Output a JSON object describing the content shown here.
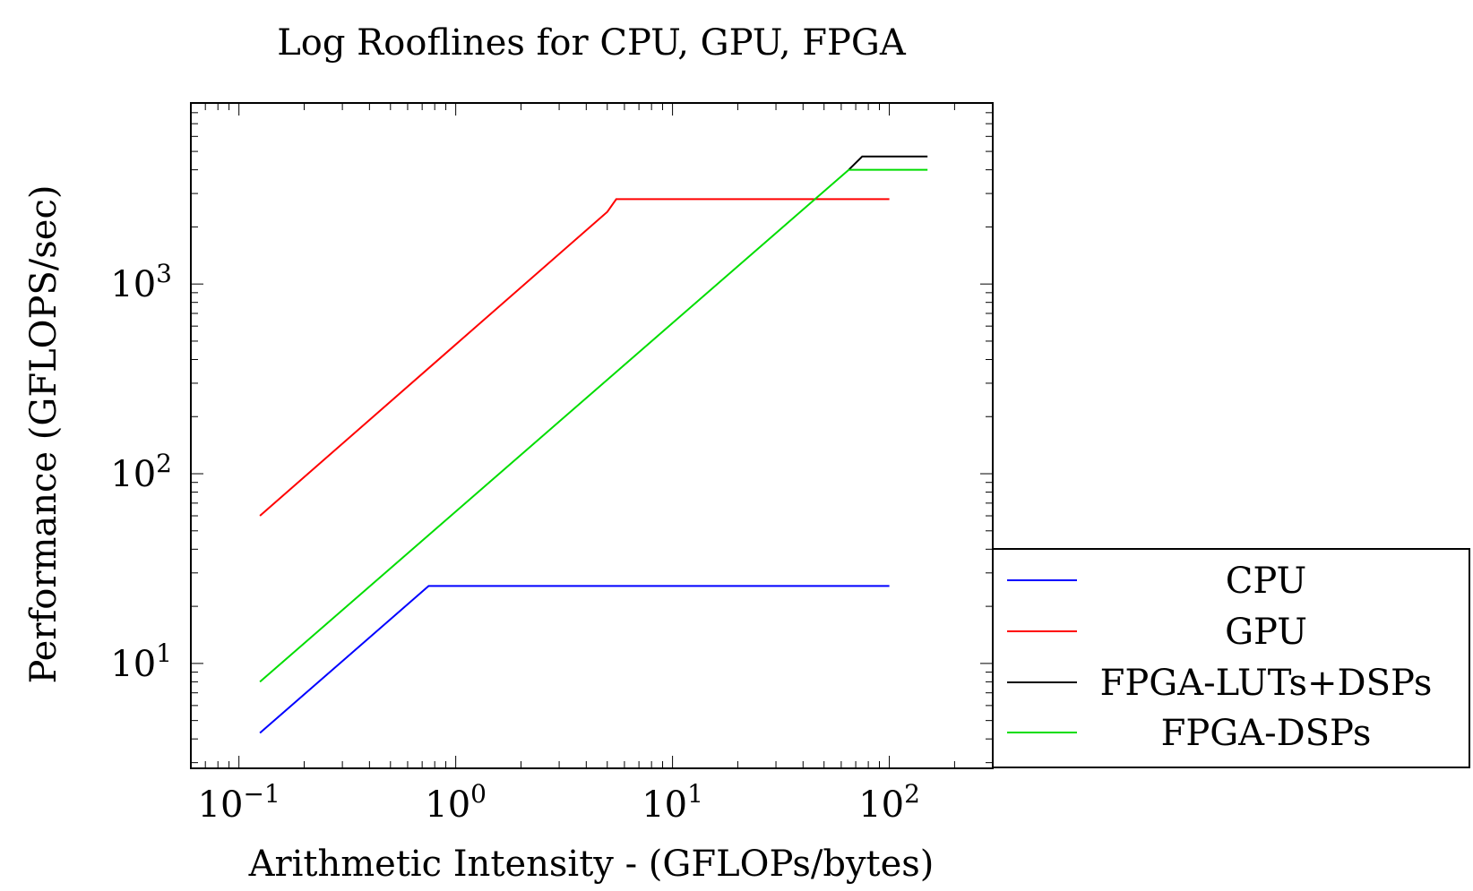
{
  "chart_data": {
    "type": "line",
    "title": "Log Rooflines for CPU, GPU, FPGA",
    "xlabel": "Arithmetic Intensity - (GFLOPs/bytes)",
    "ylabel": "Performance (GFLOPS/sec)",
    "x_scale": "log",
    "y_scale": "log",
    "xlim": [
      0.06,
      300
    ],
    "ylim": [
      2.8,
      9000
    ],
    "x_ticks": [
      {
        "value": 0.1,
        "base": "10",
        "exp": "−1"
      },
      {
        "value": 1,
        "base": "10",
        "exp": "0"
      },
      {
        "value": 10,
        "base": "10",
        "exp": "1"
      },
      {
        "value": 100,
        "base": "10",
        "exp": "2"
      }
    ],
    "y_ticks": [
      {
        "value": 10,
        "base": "10",
        "exp": "1"
      },
      {
        "value": 100,
        "base": "10",
        "exp": "2"
      },
      {
        "value": 1000,
        "base": "10",
        "exp": "3"
      }
    ],
    "grid": false,
    "legend_position": "outside-right-bottom",
    "series": [
      {
        "name": "CPU",
        "color": "#0000ff",
        "x": [
          0.125,
          0.75,
          100
        ],
        "y": [
          4.3,
          25.6,
          25.6
        ]
      },
      {
        "name": "GPU",
        "color": "#ff0000",
        "x": [
          0.125,
          5.0,
          5.5,
          100
        ],
        "y": [
          60,
          2400,
          2800,
          2800
        ]
      },
      {
        "name": "FPGA-LUTs+DSPs",
        "color": "#000000",
        "x": [
          65,
          75,
          150
        ],
        "y": [
          4000,
          4700,
          4700
        ]
      },
      {
        "name": "FPGA-DSPs",
        "color": "#00dd00",
        "x": [
          0.125,
          65,
          150
        ],
        "y": [
          8.0,
          4000,
          4000
        ]
      }
    ]
  }
}
